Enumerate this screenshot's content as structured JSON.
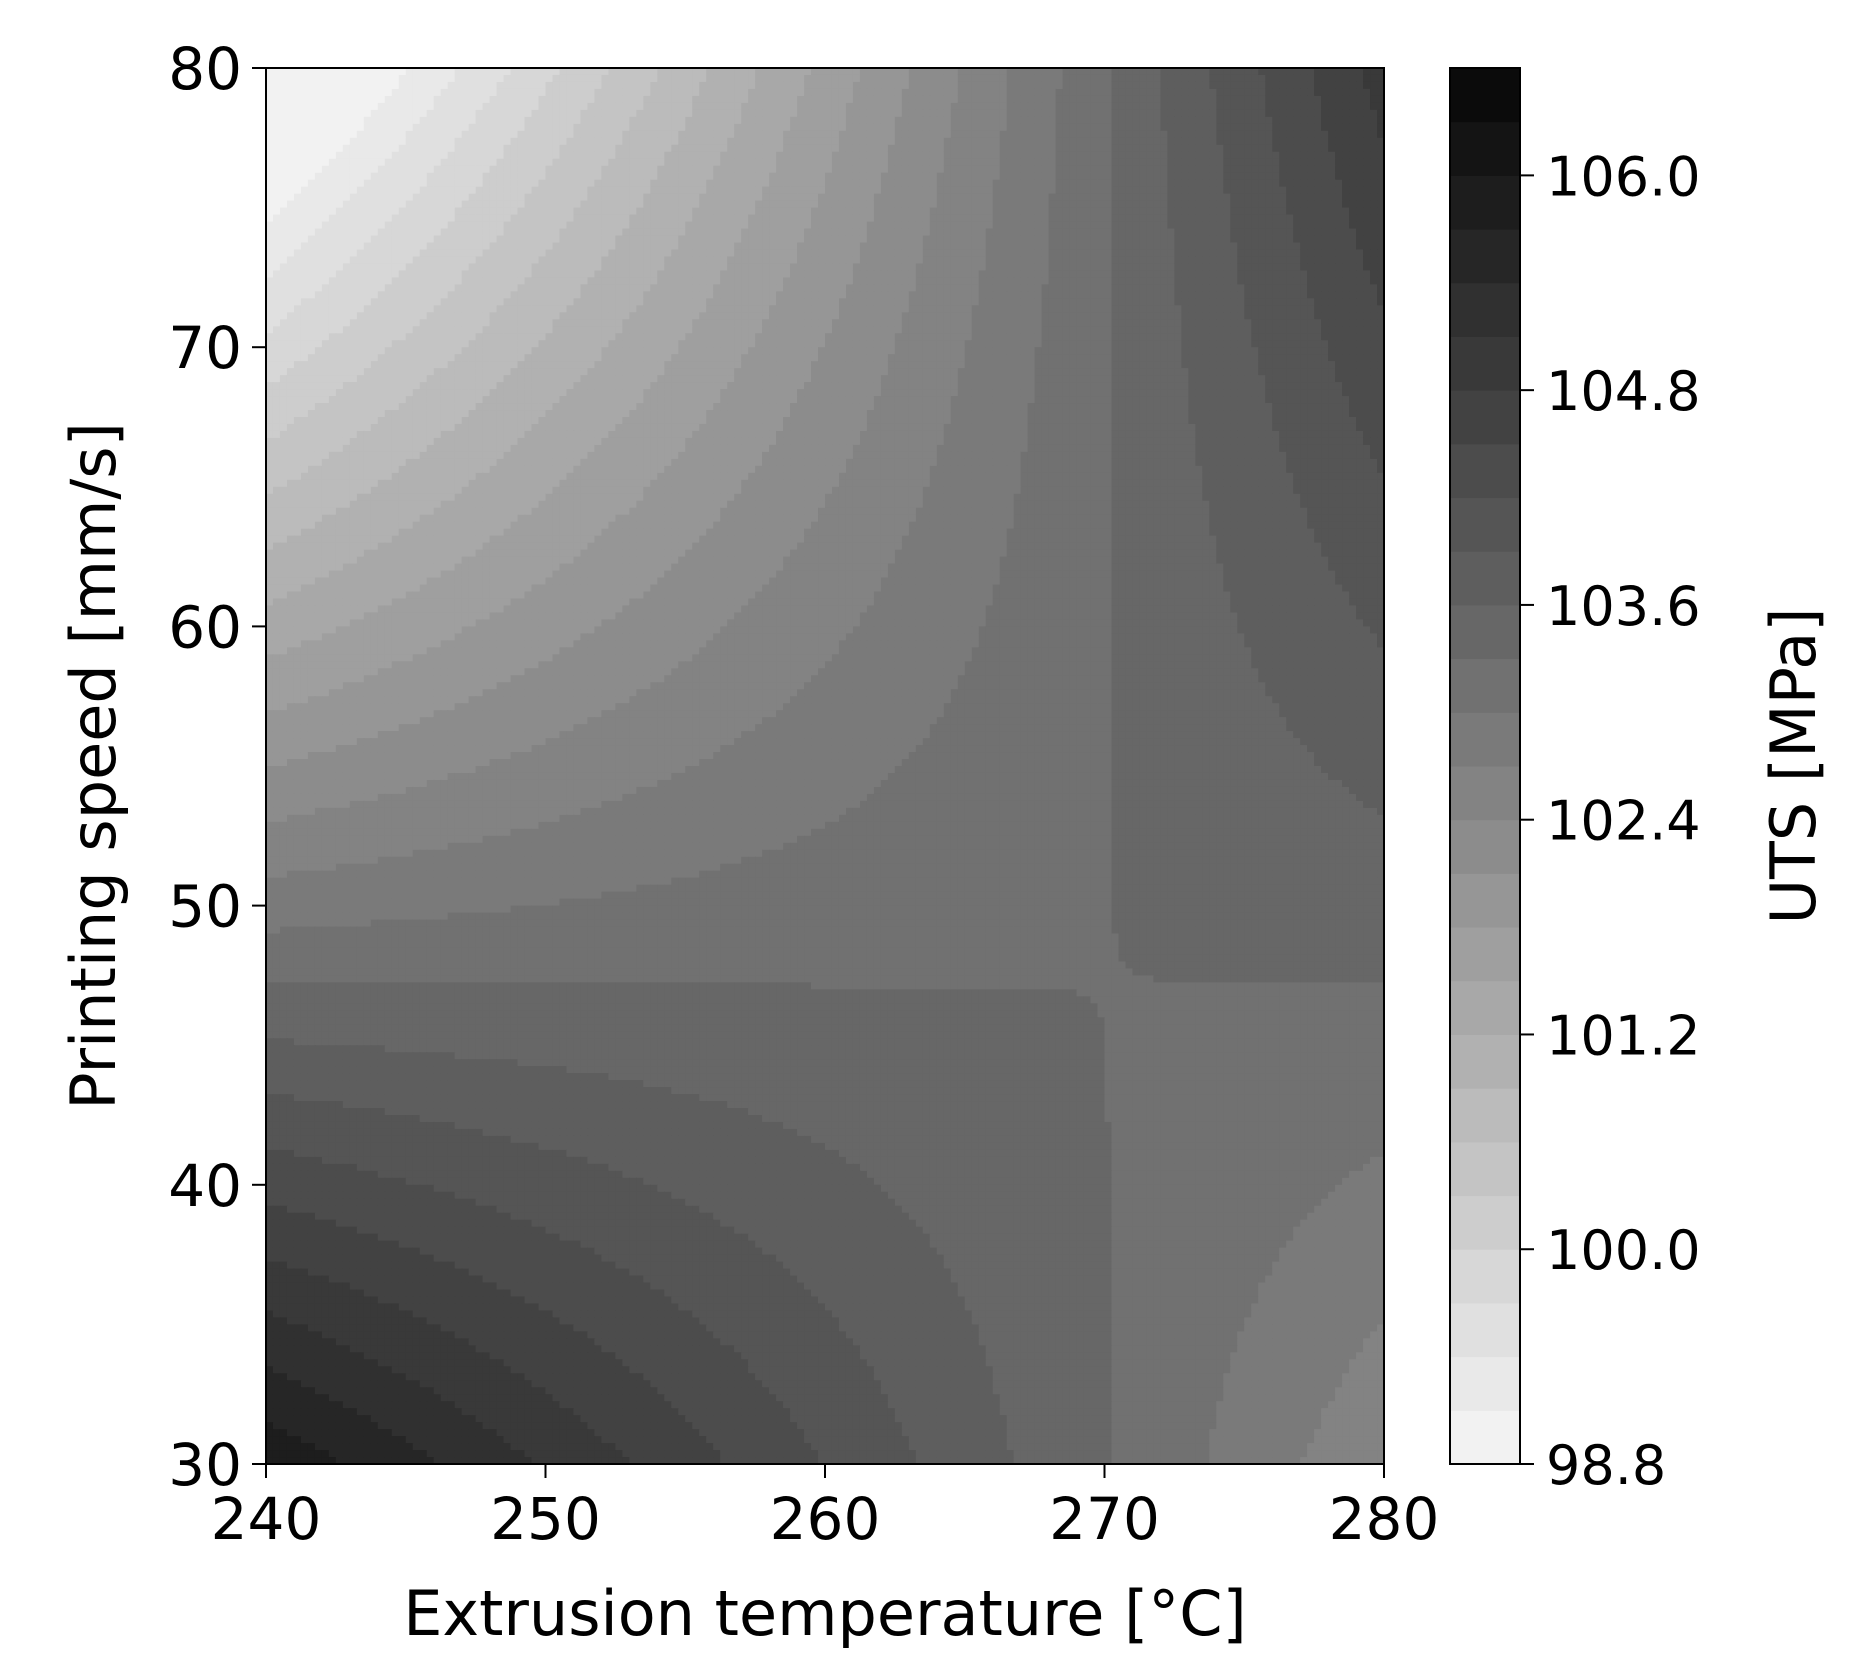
{
  "chart_data": {
    "type": "heatmap",
    "subtype": "filled-contour",
    "colormap": "greys",
    "xlabel": "Extrusion temperature [°C]",
    "ylabel": "Printing speed [mm/s]",
    "xlim": [
      240,
      280
    ],
    "ylim": [
      30,
      80
    ],
    "x_ticks": [
      240,
      250,
      260,
      270,
      280
    ],
    "y_ticks": [
      30,
      40,
      50,
      60,
      70,
      80
    ],
    "colorbar": {
      "label": "UTS [MPa]",
      "range": [
        98.8,
        106.6
      ],
      "ticks": [
        "98.8",
        "100.0",
        "101.2",
        "102.4",
        "103.6",
        "104.8",
        "106.0"
      ],
      "levels": [
        98.8,
        99.1,
        99.4,
        99.7,
        100.0,
        100.3,
        100.6,
        100.9,
        101.2,
        101.5,
        101.8,
        102.1,
        102.4,
        102.7,
        103.0,
        103.3,
        103.6,
        103.9,
        104.2,
        104.5,
        104.8,
        105.1,
        105.4,
        105.7,
        106.0,
        106.3,
        106.6
      ]
    },
    "surface": {
      "model": "saddle",
      "saddle_point": {
        "x": 268,
        "y": 47,
        "z": 103.3
      },
      "corners": [
        {
          "x": 240,
          "y": 80,
          "z": 98.8
        },
        {
          "x": 280,
          "y": 80,
          "z": 105.5
        },
        {
          "x": 240,
          "y": 30,
          "z": 106.5
        },
        {
          "x": 280,
          "y": 30,
          "z": 103.0
        }
      ]
    },
    "grid": false
  }
}
